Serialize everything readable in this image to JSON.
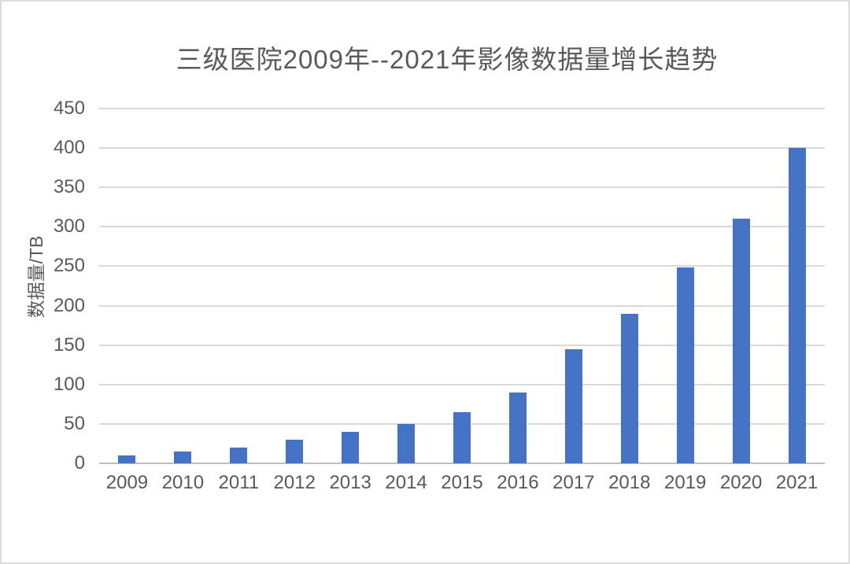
{
  "chart_data": {
    "type": "bar",
    "title": "三级医院2009年--2021年影像数据量增长趋势",
    "ylabel": "数据量/TB",
    "xlabel": "",
    "categories": [
      "2009",
      "2010",
      "2011",
      "2012",
      "2013",
      "2014",
      "2015",
      "2016",
      "2017",
      "2018",
      "2019",
      "2020",
      "2021"
    ],
    "values": [
      10,
      15,
      20,
      30,
      40,
      50,
      65,
      90,
      145,
      190,
      248,
      310,
      400
    ],
    "ylim": [
      0,
      450
    ],
    "ytick_interval": 50,
    "yticks": [
      0,
      50,
      100,
      150,
      200,
      250,
      300,
      350,
      400,
      450
    ],
    "grid": "horizontal",
    "legend": "none",
    "colors": {
      "bar": "#4472C4",
      "title_text": "#595959",
      "tick_text": "#595959",
      "gridline": "#d9d9d9",
      "axis_line": "#bfbfbf",
      "background": "#ffffff",
      "border": "#dcdcdc"
    }
  }
}
